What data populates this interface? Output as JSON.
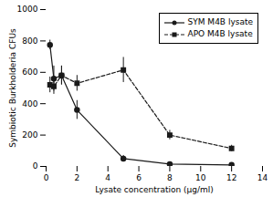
{
  "chart_data": {
    "type": "line",
    "xlabel": "Lysate concentration (μg/ml)",
    "ylabel": "Symbiotic Burkholderia CFUs",
    "x": [
      0.25,
      0.5,
      1.0,
      2.0,
      5.0,
      8.0,
      12.0
    ],
    "series": [
      {
        "name": "SYM M4B lysate",
        "color": "#1a1a1a",
        "marker": "circle",
        "line_style": "solid",
        "values": [
          775,
          560,
          580,
          360,
          50,
          15,
          10
        ],
        "yerr": [
          30,
          80,
          60,
          60,
          20,
          10,
          5
        ]
      },
      {
        "name": "APO M4B lysate",
        "color": "#1a1a1a",
        "marker": "square",
        "line_style": "dashed",
        "values": [
          520,
          510,
          580,
          530,
          615,
          200,
          115
        ],
        "yerr": [
          50,
          50,
          60,
          50,
          80,
          30,
          20
        ]
      }
    ],
    "xlim": [
      0,
      14
    ],
    "ylim": [
      0,
      1000
    ],
    "xticks": [
      0,
      2,
      4,
      6,
      8,
      10,
      12,
      14
    ],
    "yticks": [
      0,
      200,
      400,
      600,
      800,
      1000
    ],
    "grid": false,
    "legend": "upper right"
  }
}
